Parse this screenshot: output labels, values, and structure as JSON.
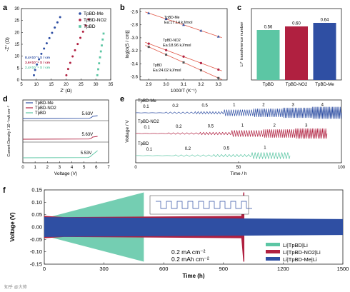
{
  "colors": {
    "blue": "#2f4fa3",
    "red": "#b02040",
    "teal": "#5cc6a4",
    "gray": "#555555",
    "fit": "#e05a4a",
    "bar_tpbd": "#5cc6a4",
    "bar_no2": "#b02040",
    "bar_me": "#2f4fa3"
  },
  "watermark": "知乎 @大帅",
  "chart_data": [
    {
      "panel": "a",
      "type": "scatter",
      "xlabel": "Z' (Ω)",
      "ylabel": "-Z'' (Ω)",
      "xlim": [
        5,
        35
      ],
      "ylim": [
        0,
        30
      ],
      "xticks": [
        "5",
        "10",
        "15",
        "20",
        "25",
        "30",
        "35"
      ],
      "yticks": [
        "0",
        "5",
        "10",
        "15",
        "20",
        "25",
        "30"
      ],
      "legend": [
        "TpBD-Me",
        "TpBD-NO2",
        "TpBD"
      ],
      "annotations": [
        "8.4×10⁻⁵ S / cm",
        "3.6×10⁻⁵ S / cm",
        "2.4×10⁻⁵ S / cm"
      ],
      "series": [
        {
          "name": "TpBD-Me",
          "x": [
            9.2,
            9.6,
            10.2,
            10.9,
            11.7,
            12.6,
            13.5,
            14.4,
            15.3,
            16.2,
            17.1,
            18.0
          ],
          "y": [
            2.0,
            4.2,
            6.5,
            8.7,
            11.0,
            13.2,
            15.4,
            17.6,
            19.8,
            22.0,
            24.2,
            26.4
          ]
        },
        {
          "name": "TpBD-NO2",
          "x": [
            20.1,
            20.7,
            21.4,
            22.2,
            23.0,
            23.9,
            24.8,
            25.7,
            26.6,
            27.5
          ],
          "y": [
            2.0,
            4.6,
            7.2,
            9.9,
            12.5,
            15.1,
            17.7,
            20.3,
            22.9,
            25.5
          ]
        },
        {
          "name": "TpBD",
          "x": [
            30.5,
            30.8,
            31.1,
            31.4,
            31.7,
            32.0,
            32.3,
            32.6
          ],
          "y": [
            2.0,
            4.5,
            7.0,
            9.5,
            12.0,
            14.5,
            17.0,
            19.5
          ]
        }
      ]
    },
    {
      "panel": "b",
      "type": "scatter",
      "xlabel": "1000/T (K⁻¹)",
      "ylabel": "log[σ(S / cm)]",
      "xlim": [
        2.85,
        3.35
      ],
      "ylim": [
        -3.65,
        -2.55
      ],
      "xticks": [
        "2.9",
        "3.0",
        "3.1",
        "3.2",
        "3.3"
      ],
      "yticks": [
        "-2.6",
        "-2.8",
        "-3.0",
        "-3.2",
        "-3.4",
        "-3.6"
      ],
      "annotations": [
        "TpBD-Me",
        "Ea:17.14 kJ/mol",
        "TpBD-NO2",
        "Ea:18.96 kJ/mol",
        "TpBD",
        "Ea:24.02 kJ/mol"
      ],
      "series": [
        {
          "name": "TpBD-Me",
          "x": [
            2.9,
            3.0,
            3.1,
            3.2,
            3.3
          ],
          "y": [
            -2.62,
            -2.71,
            -2.8,
            -2.89,
            -2.98
          ]
        },
        {
          "name": "TpBD-NO2",
          "x": [
            2.9,
            3.0,
            3.1,
            3.2,
            3.3
          ],
          "y": [
            -3.09,
            -3.19,
            -3.29,
            -3.39,
            -3.49
          ]
        },
        {
          "name": "TpBD",
          "x": [
            2.9,
            3.0,
            3.1,
            3.2,
            3.3
          ],
          "y": [
            -3.14,
            -3.26,
            -3.38,
            -3.5,
            -3.62
          ]
        }
      ]
    },
    {
      "panel": "c",
      "type": "bar",
      "ylabel": "Li⁺ transference number",
      "categories": [
        "TpBD",
        "TpBD-NO2",
        "TpBD-Me"
      ],
      "values": [
        0.56,
        0.6,
        0.64
      ],
      "value_labels": [
        "0.56",
        "0.60",
        "0.64"
      ],
      "ylim": [
        0,
        0.8
      ]
    },
    {
      "panel": "d",
      "type": "line",
      "xlabel": "Voltage (V)",
      "ylabel": "Current Density / 10⁻⁵mA cm⁻²",
      "xlim": [
        0,
        7
      ],
      "xticks": [
        "0",
        "1",
        "2",
        "3",
        "4",
        "5",
        "6",
        "7"
      ],
      "legend": [
        "TpBD-Me",
        "TpBD-NO2",
        "TpBD"
      ],
      "annotations": [
        "5.63V",
        "5.63V",
        "5.53V"
      ]
    },
    {
      "panel": "e",
      "type": "line",
      "xlabel": "Time / h",
      "ylabel": "Voltage / V",
      "xlim": [
        0,
        100
      ],
      "xticks": [
        "0",
        "50",
        "100"
      ],
      "series_labels": [
        "TpBD-Me",
        "TpBD-NO2",
        "TpBD"
      ],
      "rate_labels_me": [
        "0.1",
        "0.2",
        "0.5",
        "1",
        "2",
        "3",
        "4"
      ],
      "rate_labels_no2": [
        "0.1",
        "0.2",
        "0.5",
        "1",
        "2",
        "3"
      ],
      "rate_labels_tpbd": [
        "0.1",
        "0.2",
        "0.5",
        "1"
      ]
    },
    {
      "panel": "f",
      "type": "line",
      "xlabel": "Time (h)",
      "ylabel": "Voltage (V)",
      "xlim": [
        0,
        1500
      ],
      "ylim": [
        -0.15,
        0.15
      ],
      "xticks": [
        "0",
        "300",
        "600",
        "900",
        "1200",
        "1500"
      ],
      "yticks": [
        "0.15",
        "0.10",
        "0.05",
        "0.00",
        "-0.05",
        "-0.10",
        "-0.15"
      ],
      "annotations": [
        "0.2 mA cm⁻²",
        "0.2 mAh cm⁻²"
      ],
      "legend": [
        "Li|TpBD|Li",
        "Li|TpBD-NO2|Li",
        "Li|TpBD-Me|Li"
      ]
    }
  ]
}
